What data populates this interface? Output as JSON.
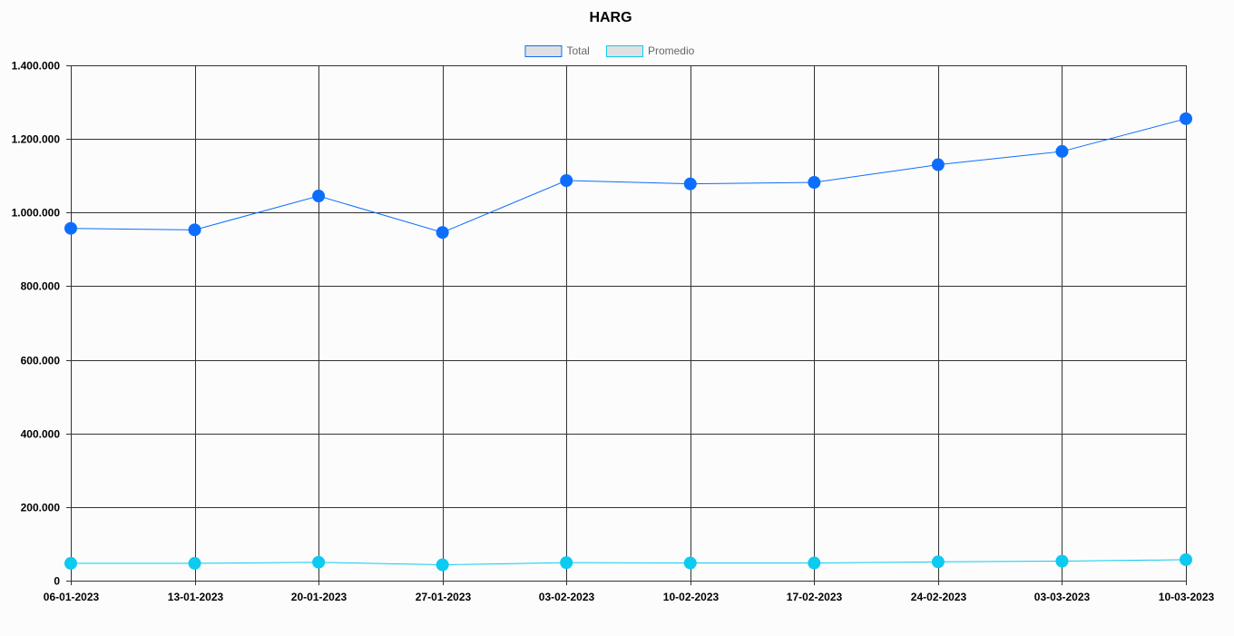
{
  "chart_data": {
    "type": "line",
    "title": "HARG",
    "categories": [
      "06-01-2023",
      "13-01-2023",
      "20-01-2023",
      "27-01-2023",
      "03-02-2023",
      "10-02-2023",
      "17-02-2023",
      "24-02-2023",
      "03-03-2023",
      "10-03-2023"
    ],
    "series": [
      {
        "name": "Total",
        "color": "#0d6efd",
        "values": [
          957000,
          953000,
          1045000,
          946000,
          1087000,
          1078000,
          1082000,
          1130000,
          1166000,
          1255000
        ]
      },
      {
        "name": "Promedio",
        "color": "#0dcaf0",
        "values": [
          47000,
          47000,
          50000,
          43000,
          49000,
          48000,
          48000,
          51000,
          53000,
          57000
        ]
      }
    ],
    "ylim": [
      0,
      1400000
    ],
    "yticks": [
      "0",
      "200.000",
      "400.000",
      "600.000",
      "800.000",
      "1.000.000",
      "1.200.000",
      "1.400.000"
    ],
    "grid": true,
    "legend_position": "top-center"
  }
}
